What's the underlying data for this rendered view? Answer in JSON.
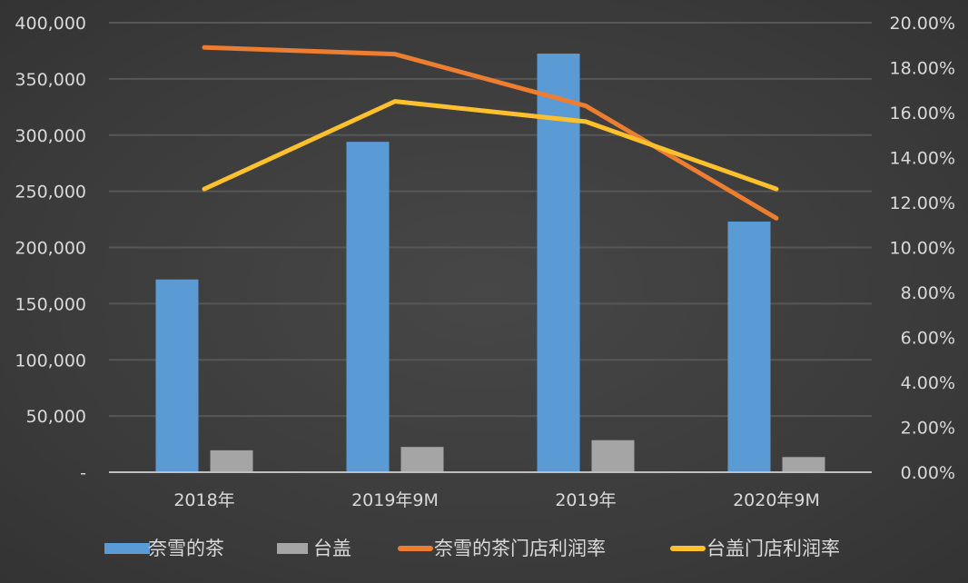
{
  "chart_data": {
    "type": "bar+line",
    "categories": [
      "2018年",
      "2019年9M",
      "2019年",
      "2020年9M"
    ],
    "bar_series": [
      {
        "name": "奈雪的茶",
        "color": "#5b9bd5",
        "values": [
          171500,
          294000,
          372500,
          223000
        ]
      },
      {
        "name": "台盖",
        "color": "#a5a5a5",
        "values": [
          19500,
          22500,
          28500,
          13500
        ]
      }
    ],
    "line_series": [
      {
        "name": "奈雪的茶门店利润率",
        "color": "#ed7d31",
        "axis": "right",
        "values": [
          18.9,
          18.6,
          16.3,
          11.3
        ]
      },
      {
        "name": "台盖门店利润率",
        "color": "#ffc02e",
        "axis": "right",
        "values": [
          12.6,
          16.5,
          15.6,
          12.6
        ]
      }
    ],
    "left_axis": {
      "range": [
        0,
        400000
      ],
      "ticks": [
        "-",
        "50,000",
        "100,000",
        "150,000",
        "200,000",
        "250,000",
        "300,000",
        "350,000",
        "400,000"
      ]
    },
    "right_axis": {
      "range": [
        0,
        20
      ],
      "unit": "%",
      "ticks": [
        "0.00%",
        "2.00%",
        "4.00%",
        "6.00%",
        "8.00%",
        "10.00%",
        "12.00%",
        "14.00%",
        "16.00%",
        "18.00%",
        "20.00%"
      ]
    },
    "grid": true,
    "legend": "bottom"
  }
}
